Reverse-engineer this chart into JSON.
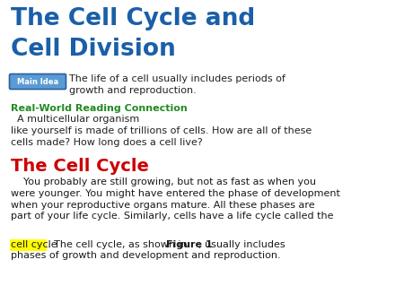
{
  "bg_color": "#ffffff",
  "title_line1": "The Cell Cycle and",
  "title_line2": "Cell Division",
  "title_color": "#1a5fa8",
  "main_idea_label": "Main Idea",
  "main_idea_label_bg": "#5b9bd5",
  "main_idea_label_border": "#2a6099",
  "main_idea_label_color": "#ffffff",
  "main_idea_text": "The life of a cell usually includes periods of\ngrowth and reproduction.",
  "main_idea_text_color": "#222222",
  "rwrc_label": "Real-World Reading Connection",
  "rwrc_label_color": "#228B22",
  "rwrc_text": "  A multicellular organism\nlike yourself is made of trillions of cells. How are all of these\ncells made? How long does a cell live?",
  "rwrc_text_color": "#222222",
  "section_title": "The Cell Cycle",
  "section_title_color": "#cc0000",
  "body_para": "    You probably are still growing, but not as fast as when you\nwere younger. You might have entered the phase of development\nwhen your reproductive organs mature. All these phases are\npart of your life cycle. Similarly, cells have a life cycle called the",
  "highlighted_text": "cell cycle",
  "highlight_color": "#ffff00",
  "body_after_highlight": ". The cell cycle, as shown in ",
  "figure1_text": "Figure 1",
  "body_end": ", usually includes\nphases of growth and development and reproduction.",
  "body_text_color": "#1a1a1a",
  "body_last_line": "phases of growth and development and reproduction."
}
